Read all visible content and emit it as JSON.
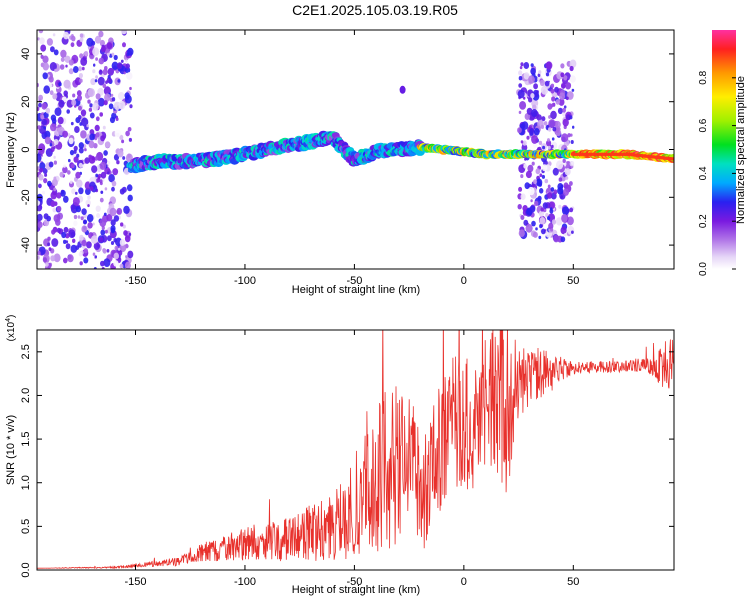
{
  "title": "C2E1.2025.105.03.19.R05",
  "chart_data": [
    {
      "type": "heatmap",
      "xlabel": "Height of straight line (km)",
      "ylabel": "Frequency (Hz)",
      "xlim": [
        -195,
        96
      ],
      "ylim": [
        -50,
        50
      ],
      "xticks": [
        -150,
        -100,
        -50,
        0,
        50
      ],
      "yticks": [
        -40,
        -20,
        0,
        20,
        40
      ],
      "colorbar": {
        "label": "Normalized spectral amplitude",
        "range": [
          0,
          1
        ],
        "ticks": [
          0.0,
          0.2,
          0.4,
          0.6,
          0.8
        ]
      },
      "features": [
        {
          "kind": "noise",
          "x_range": [
            -195,
            -152
          ],
          "y_range": [
            -50,
            50
          ],
          "amplitude": 0.15
        },
        {
          "kind": "noise",
          "x_range": [
            25,
            50
          ],
          "y_range": [
            -38,
            36
          ],
          "amplitude": 0.15
        },
        {
          "kind": "track",
          "points": [
            [
              -152,
              -7
            ],
            [
              -140,
              -5
            ],
            [
              -125,
              -5
            ],
            [
              -105,
              -3
            ],
            [
              -85,
              1
            ],
            [
              -70,
              3
            ],
            [
              -60,
              5
            ],
            [
              -50,
              -4
            ],
            [
              -40,
              -1
            ],
            [
              -30,
              0
            ],
            [
              -20,
              1
            ],
            [
              -10,
              0
            ],
            [
              0,
              -1
            ],
            [
              10,
              -2
            ],
            [
              25,
              -2
            ],
            [
              50,
              -2
            ],
            [
              75,
              -2
            ],
            [
              96,
              -4
            ]
          ]
        },
        {
          "kind": "point",
          "x": -28,
          "y": 25,
          "amplitude": 0.1
        }
      ]
    },
    {
      "type": "line",
      "xlabel": "Height of straight line (km)",
      "ylabel": "SNR (10 * v/v)",
      "scale_label": "(x10",
      "scale_exponent": "4",
      "xlim": [
        -195,
        96
      ],
      "ylim": [
        0,
        2.75
      ],
      "xticks": [
        -150,
        -100,
        -50,
        0,
        50
      ],
      "yticks": [
        0.0,
        0.5,
        1.0,
        1.5,
        2.0,
        2.5
      ],
      "series": [
        {
          "color": "#e8312c",
          "envelope": [
            [
              -195,
              0.02,
              0.0
            ],
            [
              -160,
              0.03,
              0.01
            ],
            [
              -150,
              0.05,
              0.02
            ],
            [
              -130,
              0.1,
              0.05
            ],
            [
              -120,
              0.2,
              0.1
            ],
            [
              -100,
              0.3,
              0.2
            ],
            [
              -80,
              0.35,
              0.25
            ],
            [
              -60,
              0.5,
              0.4
            ],
            [
              -50,
              0.7,
              0.6
            ],
            [
              -42,
              1.0,
              0.9
            ],
            [
              -35,
              1.2,
              1.0
            ],
            [
              -25,
              1.1,
              0.9
            ],
            [
              -18,
              0.9,
              0.7
            ],
            [
              -12,
              1.3,
              0.8
            ],
            [
              -5,
              1.8,
              0.9
            ],
            [
              0,
              1.7,
              0.8
            ],
            [
              5,
              1.6,
              0.7
            ],
            [
              10,
              2.0,
              0.8
            ],
            [
              15,
              1.9,
              0.9
            ],
            [
              20,
              2.0,
              1.2
            ],
            [
              25,
              2.15,
              0.4
            ],
            [
              35,
              2.25,
              0.3
            ],
            [
              50,
              2.32,
              0.08
            ],
            [
              70,
              2.33,
              0.06
            ],
            [
              85,
              2.35,
              0.1
            ],
            [
              96,
              2.35,
              0.4
            ]
          ]
        }
      ]
    }
  ]
}
